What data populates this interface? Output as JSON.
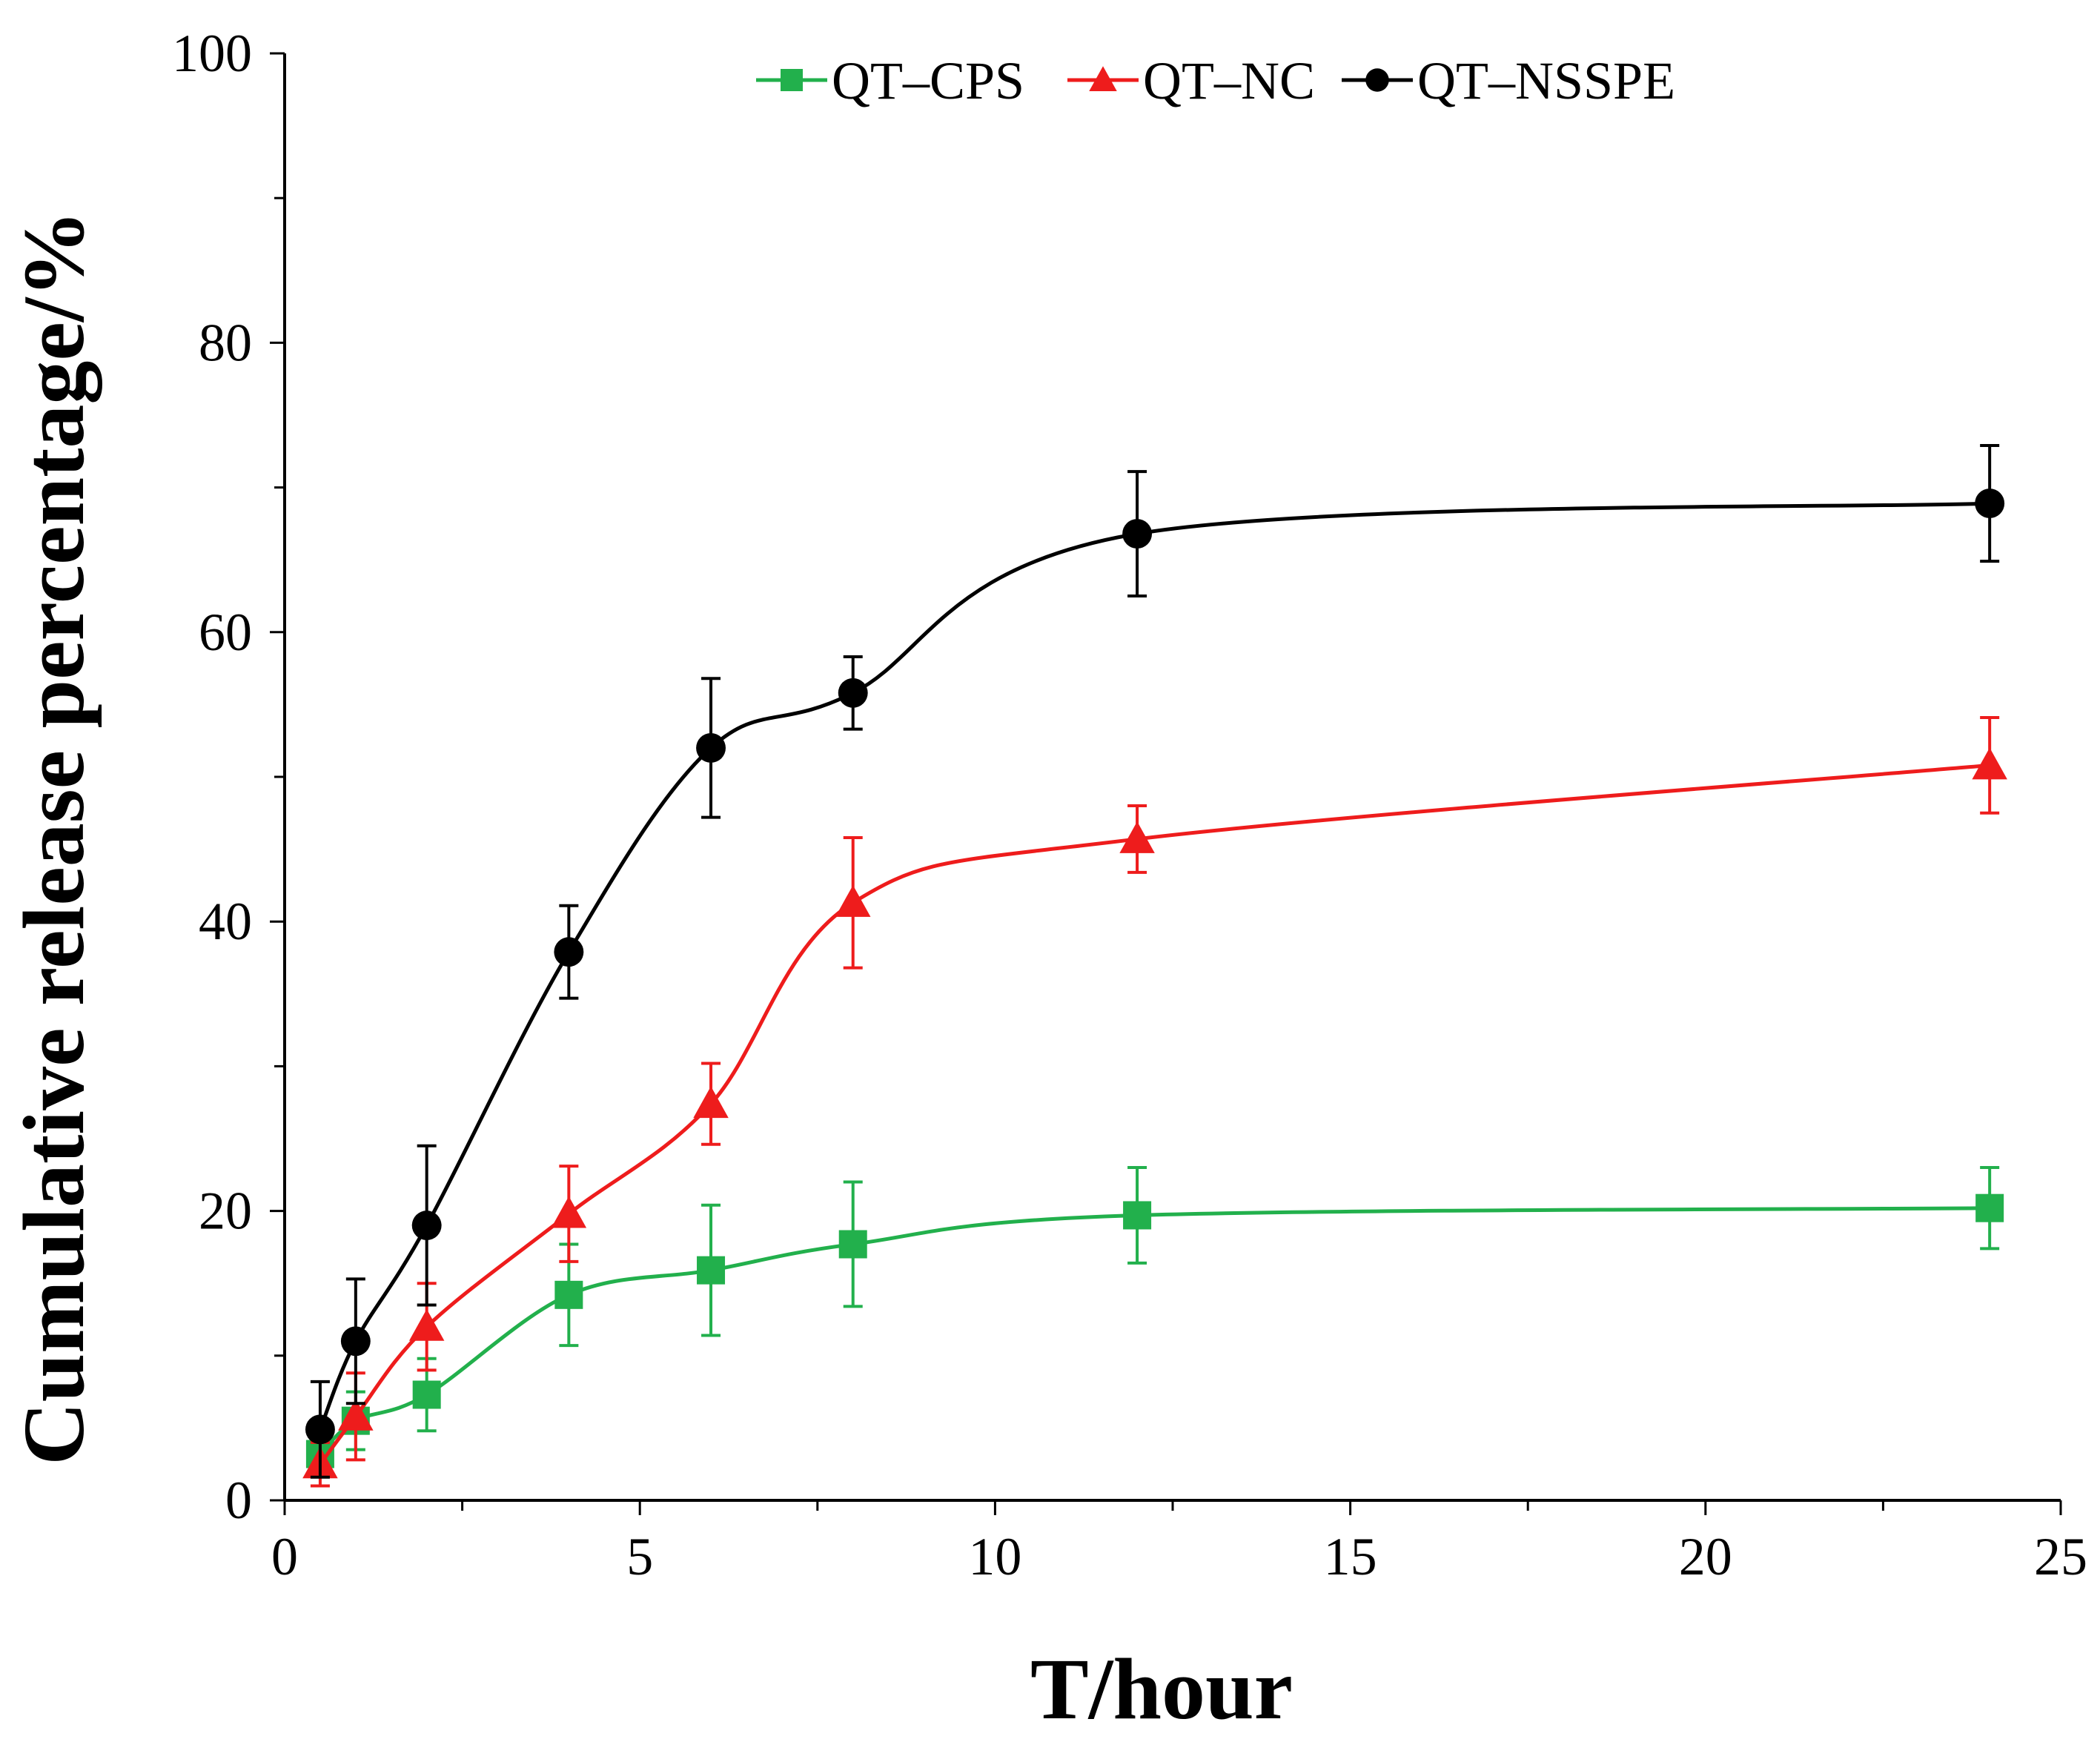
{
  "chart_data": {
    "type": "line",
    "title": "",
    "xlabel": "T/hour",
    "ylabel": "Cumulative release percentage/%",
    "xlim": [
      0,
      25
    ],
    "ylim": [
      0,
      100
    ],
    "x_ticks": [
      0,
      5,
      10,
      15,
      20,
      25
    ],
    "x_tick_labels": [
      "0",
      "5",
      "10",
      "15",
      "20",
      "25"
    ],
    "y_ticks": [
      0,
      20,
      40,
      60,
      80,
      100
    ],
    "y_tick_labels": [
      "0",
      "20",
      "40",
      "60",
      "80",
      "100"
    ],
    "x_minor_step": 2.5,
    "y_minor_step": 10,
    "grid": false,
    "legend_position": "top",
    "series": [
      {
        "name": "QT–CPS",
        "color": "#22b04c",
        "marker": "square",
        "x": [
          0.5,
          1,
          2,
          4,
          6,
          8,
          12,
          24
        ],
        "y": [
          3.2,
          5.5,
          7.3,
          14.2,
          15.9,
          17.7,
          19.7,
          20.2
        ],
        "err": [
          1.5,
          2.0,
          2.5,
          3.5,
          4.5,
          4.3,
          3.3,
          2.8
        ]
      },
      {
        "name": "QT–NC",
        "color": "#ee1c1c",
        "marker": "triangle",
        "x": [
          0.5,
          1,
          2,
          4,
          6,
          8,
          12,
          24
        ],
        "y": [
          2.5,
          5.8,
          12.0,
          19.8,
          27.4,
          41.3,
          45.7,
          50.8
        ],
        "err": [
          1.5,
          3.0,
          3.0,
          3.3,
          2.8,
          4.5,
          2.3,
          3.3
        ]
      },
      {
        "name": "QT–NSSPE",
        "color": "#000000",
        "marker": "circle",
        "x": [
          0.5,
          1,
          2,
          4,
          6,
          8,
          12,
          24
        ],
        "y": [
          4.9,
          11.0,
          19.0,
          37.9,
          52.0,
          55.8,
          66.8,
          68.9
        ],
        "err": [
          3.3,
          4.3,
          5.5,
          3.2,
          4.8,
          2.5,
          4.3,
          4.0
        ]
      }
    ]
  }
}
